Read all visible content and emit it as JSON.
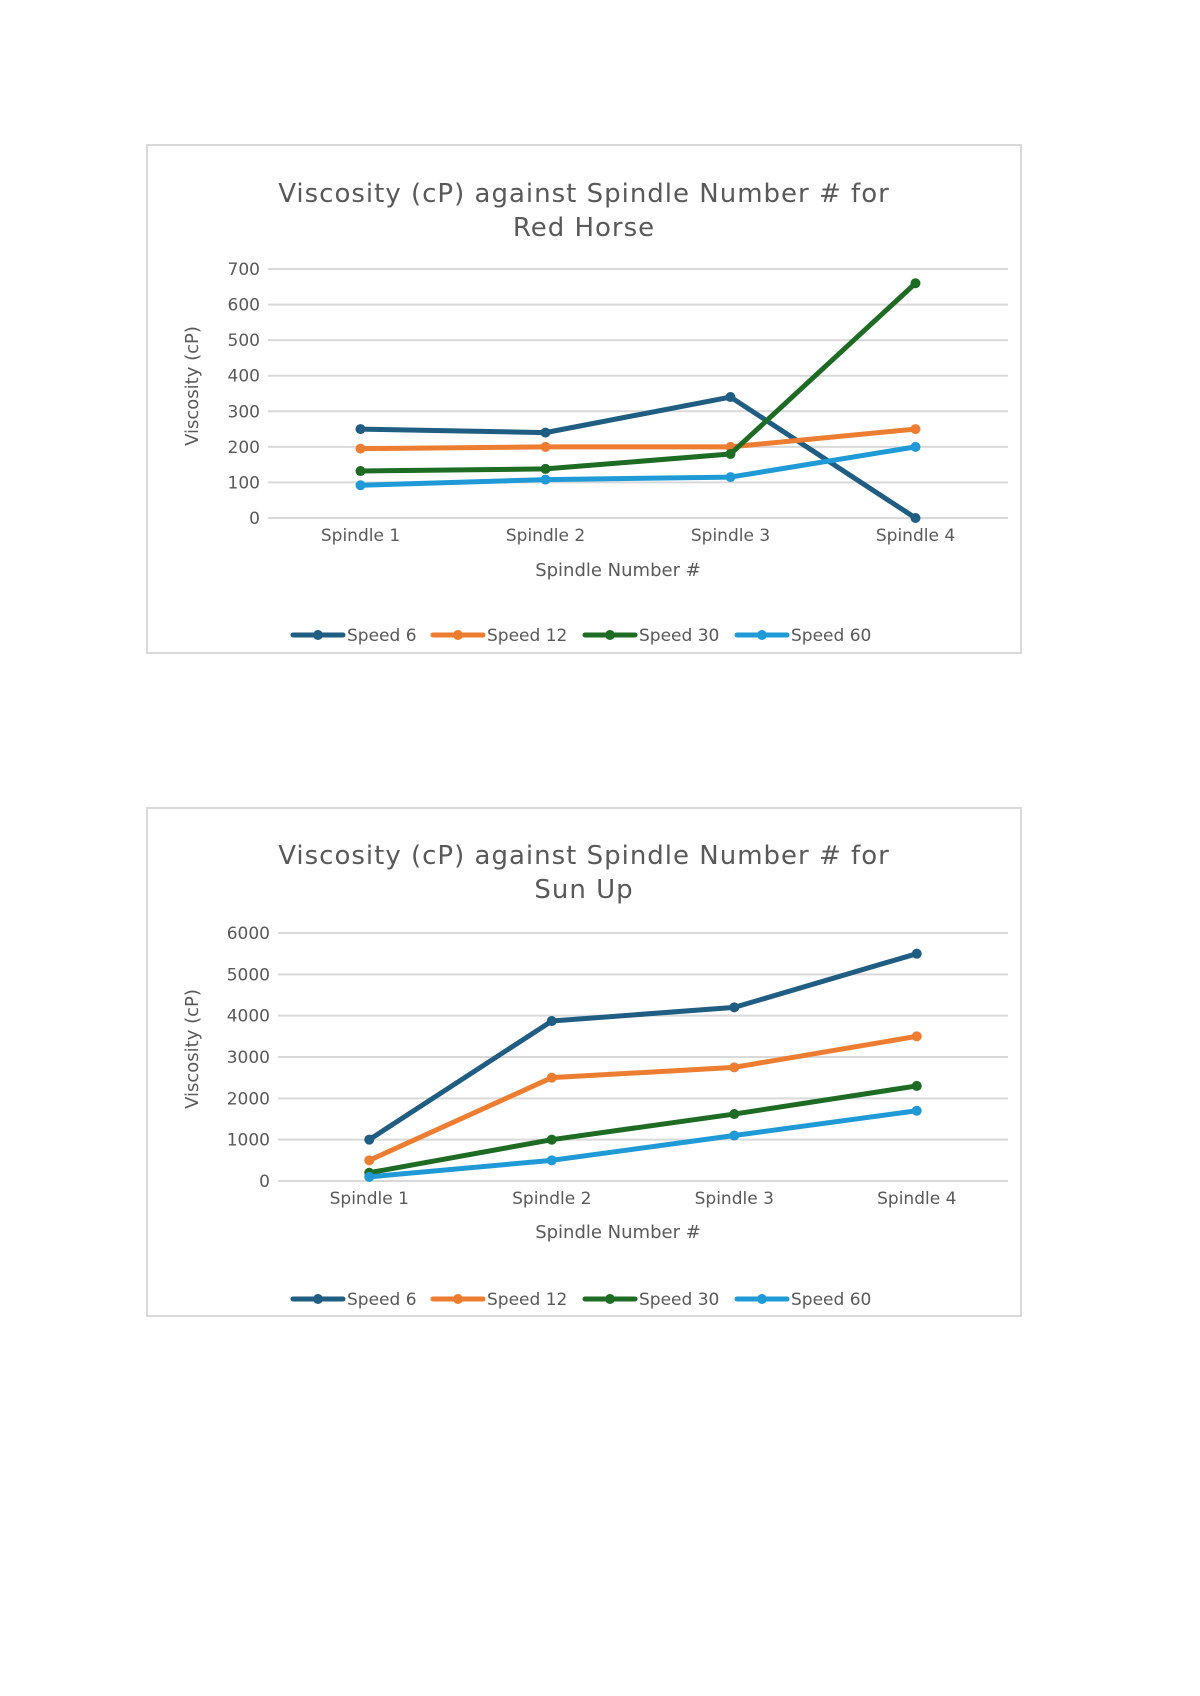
{
  "charts": [
    {
      "type": "line",
      "title_lines": [
        "Viscosity (cP) against Spindle Number # for",
        "Red Horse"
      ],
      "xlabel": "Spindle Number #",
      "ylabel": "Viscosity (cP)",
      "categories": [
        "Spindle 1",
        "Spindle 2",
        "Spindle 3",
        "Spindle 4"
      ],
      "ylim": [
        0,
        700
      ],
      "yticks": [
        0,
        100,
        200,
        300,
        400,
        500,
        600,
        700
      ],
      "gridlines": true,
      "legend_position": "bottom",
      "series": [
        {
          "name": "Speed 6",
          "color": "#1f5d82",
          "values": [
            250,
            240,
            340,
            0
          ]
        },
        {
          "name": "Speed 12",
          "color": "#ed7d31",
          "values": [
            195,
            200,
            200,
            250
          ]
        },
        {
          "name": "Speed 30",
          "color": "#1e6b24",
          "values": [
            132,
            138,
            180,
            660
          ]
        },
        {
          "name": "Speed 60",
          "color": "#1f9ad6",
          "values": [
            92,
            108,
            115,
            200
          ]
        }
      ]
    },
    {
      "type": "line",
      "title_lines": [
        "Viscosity (cP) against Spindle Number # for",
        "Sun Up"
      ],
      "xlabel": "Spindle Number #",
      "ylabel": "Viscosity (cP)",
      "categories": [
        "Spindle 1",
        "Spindle 2",
        "Spindle 3",
        "Spindle 4"
      ],
      "ylim": [
        0,
        6000
      ],
      "yticks": [
        0,
        1000,
        2000,
        3000,
        4000,
        5000,
        6000
      ],
      "gridlines": true,
      "legend_position": "bottom",
      "series": [
        {
          "name": "Speed 6",
          "color": "#1f5d82",
          "values": [
            1000,
            3870,
            4200,
            5500
          ]
        },
        {
          "name": "Speed 12",
          "color": "#ed7d31",
          "values": [
            500,
            2500,
            2750,
            3500
          ]
        },
        {
          "name": "Speed 30",
          "color": "#1e6b24",
          "values": [
            200,
            1000,
            1620,
            2300
          ]
        },
        {
          "name": "Speed 60",
          "color": "#1f9ad6",
          "values": [
            100,
            500,
            1100,
            1700
          ]
        }
      ]
    }
  ],
  "chart_data": [
    {
      "type": "line",
      "title": "Viscosity (cP) against Spindle Number # for Red Horse",
      "xlabel": "Spindle Number #",
      "ylabel": "Viscosity (cP)",
      "categories": [
        "Spindle 1",
        "Spindle 2",
        "Spindle 3",
        "Spindle 4"
      ],
      "ylim": [
        0,
        700
      ],
      "series": [
        {
          "name": "Speed 6",
          "values": [
            250,
            240,
            340,
            0
          ]
        },
        {
          "name": "Speed 12",
          "values": [
            195,
            200,
            200,
            250
          ]
        },
        {
          "name": "Speed 30",
          "values": [
            132,
            138,
            180,
            660
          ]
        },
        {
          "name": "Speed 60",
          "values": [
            92,
            108,
            115,
            200
          ]
        }
      ]
    },
    {
      "type": "line",
      "title": "Viscosity (cP) against Spindle Number # for Sun Up",
      "xlabel": "Spindle Number #",
      "ylabel": "Viscosity (cP)",
      "categories": [
        "Spindle 1",
        "Spindle 2",
        "Spindle 3",
        "Spindle 4"
      ],
      "ylim": [
        0,
        6000
      ],
      "series": [
        {
          "name": "Speed 6",
          "values": [
            1000,
            3870,
            4200,
            5500
          ]
        },
        {
          "name": "Speed 12",
          "values": [
            500,
            2500,
            2750,
            3500
          ]
        },
        {
          "name": "Speed 30",
          "values": [
            200,
            1000,
            1620,
            2300
          ]
        },
        {
          "name": "Speed 60",
          "values": [
            100,
            500,
            1100,
            1700
          ]
        }
      ]
    }
  ]
}
